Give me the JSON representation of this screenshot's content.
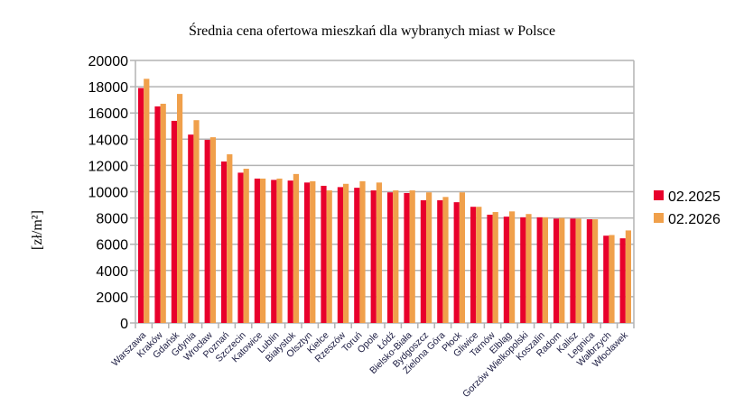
{
  "chart_data": {
    "type": "bar",
    "title": "Średnia cena ofertowa mieszkań dla wybranych miast w Polsce",
    "xlabel": "",
    "ylabel": "[zł/m²]",
    "ylim": [
      0,
      20000
    ],
    "yticks": [
      0,
      2000,
      4000,
      6000,
      8000,
      10000,
      12000,
      14000,
      16000,
      18000,
      20000
    ],
    "grid": true,
    "legend_position": "right",
    "categories": [
      "Warszawa",
      "Kraków",
      "Gdańsk",
      "Gdynia",
      "Wrocław",
      "Poznań",
      "Szczecin",
      "Katowice",
      "Lublin",
      "Białystok",
      "Olsztyn",
      "Kielce",
      "Rzeszów",
      "Toruń",
      "Opole",
      "Łódź",
      "Bielsko-Biała",
      "Bydgoszcz",
      "Zielona Góra",
      "Płock",
      "Gliwice",
      "Tarnów",
      "Elbląg",
      "Gorzów Wielkopolski",
      "Koszalin",
      "Radom",
      "Kalisz",
      "Legnica",
      "Wałbrzych",
      "Włocławek"
    ],
    "series": [
      {
        "name": "02.2025",
        "color": "#e8002c",
        "values": [
          17900,
          16500,
          15400,
          14350,
          13950,
          12300,
          11450,
          11000,
          10900,
          10850,
          10700,
          10450,
          10350,
          10300,
          10100,
          9950,
          9900,
          9350,
          9350,
          9200,
          8850,
          8250,
          8100,
          8050,
          8050,
          7950,
          7950,
          7900,
          6650,
          6450
        ]
      },
      {
        "name": "02.2026",
        "color": "#f0a04b",
        "values": [
          18600,
          16700,
          17450,
          15450,
          14150,
          12850,
          11750,
          11000,
          11000,
          11350,
          10800,
          10100,
          10600,
          10800,
          10700,
          10100,
          10100,
          9950,
          9600,
          9950,
          8850,
          8450,
          8500,
          8300,
          8050,
          8000,
          7950,
          7900,
          6700,
          7050
        ]
      }
    ]
  }
}
